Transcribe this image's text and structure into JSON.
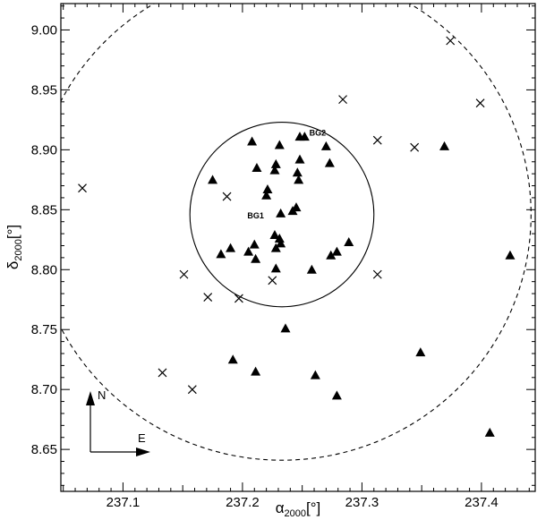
{
  "chart_data": {
    "type": "scatter",
    "xlabel": {
      "main": "α",
      "sub": "2000",
      "unit": "[°]"
    },
    "ylabel": {
      "main": "δ",
      "sub": "2000",
      "unit": "[°]"
    },
    "xlim": [
      237.048,
      237.445
    ],
    "ylim": [
      8.615,
      9.022
    ],
    "x_ticks": [
      237.1,
      237.2,
      237.3,
      237.4
    ],
    "x_tick_labels": [
      "237.1",
      "237.2",
      "237.3",
      "237.4"
    ],
    "y_ticks": [
      8.65,
      8.7,
      8.75,
      8.8,
      8.85,
      8.9,
      8.95,
      9.0
    ],
    "y_tick_labels": [
      "8.65",
      "8.70",
      "8.75",
      "8.80",
      "8.85",
      "8.90",
      "8.95",
      "9.00"
    ],
    "grid": false,
    "series": [
      {
        "marker": "triangle",
        "points": [
          [
            237.208,
            8.907
          ],
          [
            237.231,
            8.904
          ],
          [
            237.248,
            8.911
          ],
          [
            237.252,
            8.911
          ],
          [
            237.212,
            8.885
          ],
          [
            237.227,
            8.883
          ],
          [
            237.228,
            8.888
          ],
          [
            237.246,
            8.881
          ],
          [
            237.248,
            8.892
          ],
          [
            237.27,
            8.903
          ],
          [
            237.273,
            8.889
          ],
          [
            237.247,
            8.875
          ],
          [
            237.175,
            8.875
          ],
          [
            237.221,
            8.867
          ],
          [
            237.22,
            8.862
          ],
          [
            237.232,
            8.847
          ],
          [
            237.242,
            8.849
          ],
          [
            237.245,
            8.852
          ],
          [
            237.227,
            8.829
          ],
          [
            237.231,
            8.826
          ],
          [
            237.228,
            8.818
          ],
          [
            237.232,
            8.822
          ],
          [
            237.19,
            8.818
          ],
          [
            237.182,
            8.813
          ],
          [
            237.205,
            8.815
          ],
          [
            237.21,
            8.821
          ],
          [
            237.211,
            8.809
          ],
          [
            237.228,
            8.801
          ],
          [
            237.258,
            8.8
          ],
          [
            237.274,
            8.812
          ],
          [
            237.279,
            8.815
          ],
          [
            237.289,
            8.823
          ],
          [
            237.236,
            8.751
          ],
          [
            237.192,
            8.725
          ],
          [
            237.211,
            8.715
          ],
          [
            237.261,
            8.712
          ],
          [
            237.279,
            8.695
          ],
          [
            237.349,
            8.731
          ],
          [
            237.369,
            8.903
          ],
          [
            237.424,
            8.812
          ],
          [
            237.407,
            8.664
          ]
        ]
      },
      {
        "marker": "cross",
        "points": [
          [
            237.066,
            8.868
          ],
          [
            237.284,
            8.942
          ],
          [
            237.374,
            8.991
          ],
          [
            237.399,
            8.939
          ],
          [
            237.313,
            8.908
          ],
          [
            237.344,
            8.902
          ],
          [
            237.187,
            8.861
          ],
          [
            237.151,
            8.796
          ],
          [
            237.171,
            8.777
          ],
          [
            237.197,
            8.776
          ],
          [
            237.225,
            8.791
          ],
          [
            237.313,
            8.796
          ],
          [
            237.133,
            8.714
          ],
          [
            237.158,
            8.7
          ]
        ]
      }
    ],
    "circles": [
      {
        "style": "solid",
        "center": [
          237.233,
          8.846
        ],
        "radius_x": 0.077,
        "radius_y": 0.077
      },
      {
        "style": "dashed",
        "center": [
          237.233,
          8.846
        ],
        "radius_x": 0.2085,
        "radius_y": 0.205
      }
    ],
    "annotations": [
      {
        "text": "BG1",
        "x": 237.218,
        "y": 8.845
      },
      {
        "text": "BG2",
        "x": 237.256,
        "y": 8.914
      }
    ],
    "compass": {
      "north_label": "N",
      "east_label": "E"
    }
  }
}
